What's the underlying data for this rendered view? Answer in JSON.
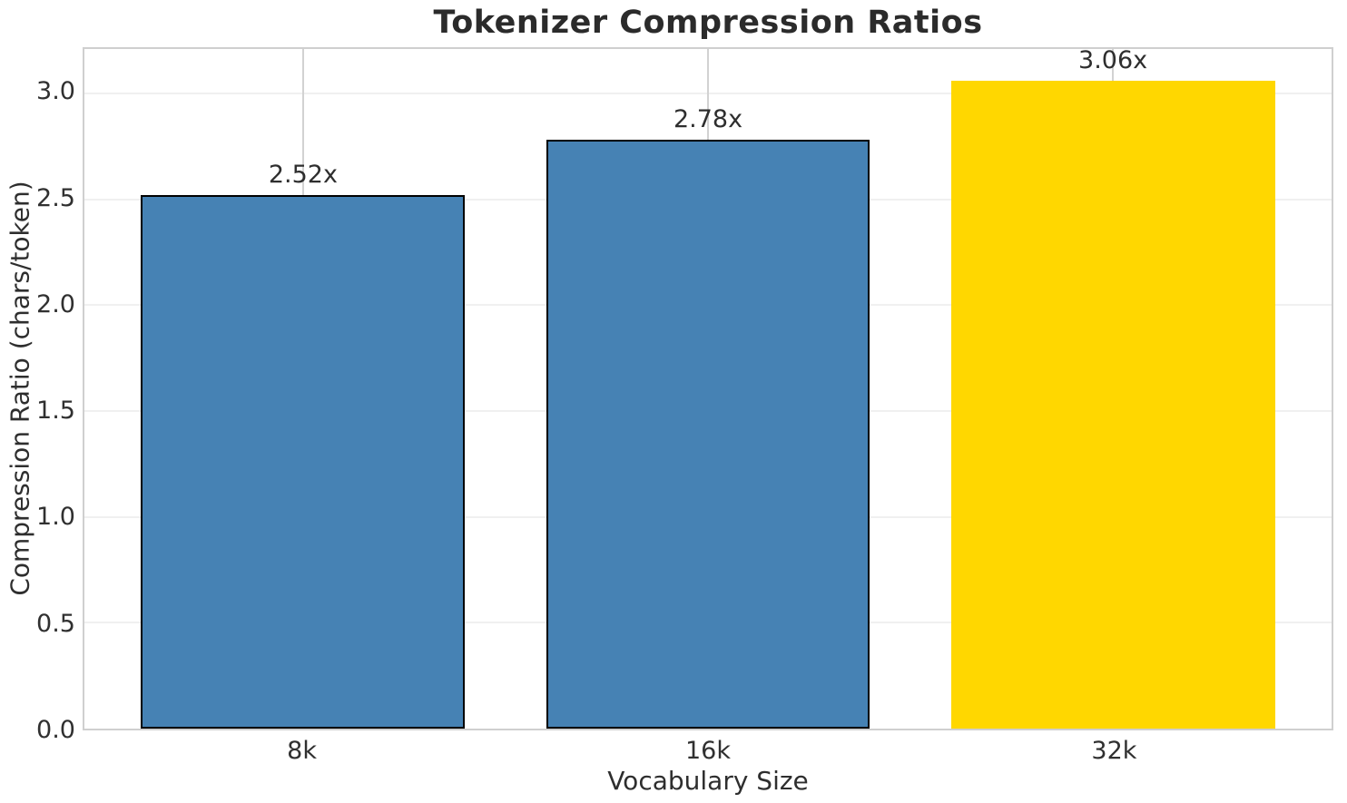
{
  "chart_data": {
    "type": "bar",
    "title": "Tokenizer Compression Ratios",
    "xlabel": "Vocabulary Size",
    "ylabel": "Compression Ratio (chars/token)",
    "categories": [
      "8k",
      "16k",
      "32k"
    ],
    "values": [
      2.52,
      2.78,
      3.06
    ],
    "bar_value_labels": [
      "2.52x",
      "2.78x",
      "3.06x"
    ],
    "bar_colors": [
      "#4682b4",
      "#4682b4",
      "#ffd700"
    ],
    "bar_edge_colors": [
      "#000000",
      "#000000",
      "none"
    ],
    "highlight_color": "#ffd700",
    "series_color": "#4682b4",
    "yticks": [
      0.0,
      0.5,
      1.0,
      1.5,
      2.0,
      2.5,
      3.0
    ],
    "ytick_labels": [
      "0.0",
      "0.5",
      "1.0",
      "1.5",
      "2.0",
      "2.5",
      "3.0"
    ],
    "ylim": [
      0,
      3.21
    ],
    "xlim": [
      -0.54,
      2.54
    ],
    "bar_width": 0.8,
    "grid": true,
    "legend": "none",
    "style_colors": {
      "grid_horizontal": "#f0f0f0",
      "grid_vertical": "#d2d2d2",
      "frame": "#cfcfcf",
      "text": "#2e2e2e"
    }
  }
}
